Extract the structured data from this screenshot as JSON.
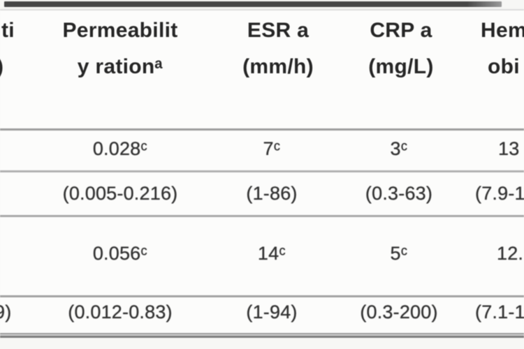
{
  "table": {
    "header": {
      "col0": {
        "line1": "ti",
        "line2": ")"
      },
      "col1": {
        "line1": "Permeabilit",
        "line2": "y rationᵃ"
      },
      "col2": {
        "line1": "ESR a",
        "line2": "(mm/h)"
      },
      "col3": {
        "line1": "CRP a",
        "line2": "(mg/L)"
      },
      "col4": {
        "line1": "Hem",
        "line2": "obi"
      }
    },
    "rows": [
      {
        "col0": "",
        "col1": "0.028ᶜ",
        "col2": "7ᶜ",
        "col3": "3ᶜ",
        "col4": "13"
      },
      {
        "col0": ")",
        "col1": "(0.005-0.216)",
        "col2": "(1-86)",
        "col3": "(0.3-63)",
        "col4": "(7.9-1"
      },
      {
        "col0": "",
        "col1": "0.056ᶜ",
        "col2": "14ᶜ",
        "col3": "5ᶜ",
        "col4": "12."
      },
      {
        "col0": "9)",
        "col1": "(0.012-0.83)",
        "col2": "(1-94)",
        "col3": "(0.3-200)",
        "col4": "(7.1-1"
      }
    ]
  },
  "colors": {
    "background": "#f7f7f5",
    "row_background": "#fcfcfb",
    "header_text": "#262626",
    "data_text": "#333333",
    "top_border": "#464646",
    "row_divider": "#a8a8a8",
    "bottom_border": "#7e7e7e"
  }
}
